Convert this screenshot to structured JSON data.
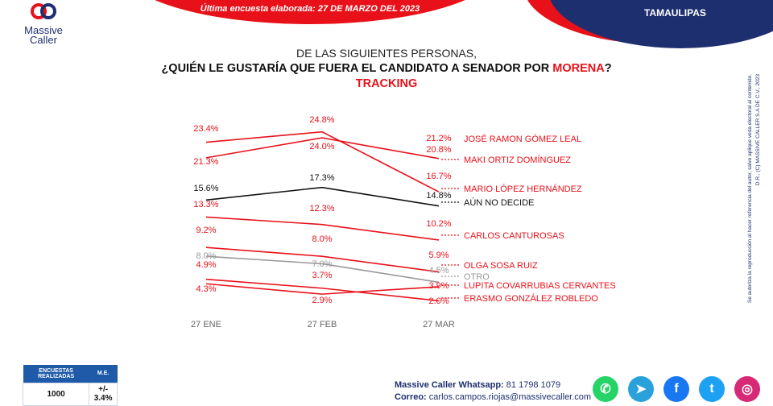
{
  "header": {
    "brand_line1": "Massive",
    "brand_line2": "Caller",
    "latest_survey": "Última encuesta elaborada:  27 DE MARZO DEL 2023",
    "state": "TAMAULIPAS"
  },
  "title": {
    "line1": "DE LAS SIGUIENTES  PERSONAS,",
    "line2_prefix": "¿QUIÉN LE GUSTARÍA QUE FUERA EL CANDIDATO  A SENADOR POR ",
    "line2_party": "MORENA",
    "line2_suffix": "?",
    "line3": "TRACKING"
  },
  "colors": {
    "red": "#e8111a",
    "navy": "#1e2f6f",
    "black": "#111111",
    "gray": "#999999"
  },
  "chart_data": {
    "type": "line",
    "title": "¿QUIÉN LE GUSTARÍA QUE FUERA EL CANDIDATO A SENADOR POR MORENA? TRACKING",
    "categories": [
      "27 ENE",
      "27 FEB",
      "27 MAR"
    ],
    "xlabel": "",
    "ylabel": "",
    "ylim": [
      0,
      26
    ],
    "grid": false,
    "legend": "right",
    "series": [
      {
        "name": "JOSÉ RAMON GÓMEZ LEAL",
        "values": [
          21.3,
          24.0,
          21.2
        ],
        "color": "#e8111a"
      },
      {
        "name": "MAKI ORTIZ DOMÍNGUEZ",
        "values": [
          23.4,
          24.8,
          16.7
        ],
        "color": "#e8111a"
      },
      {
        "name": "MARIO LÓPEZ HERNÁNDEZ",
        "values": [
          null,
          null,
          20.8
        ],
        "color": "#e8111a"
      },
      {
        "name": "AÚN NO DECIDE",
        "values": [
          15.6,
          17.3,
          14.8
        ],
        "color": "#111111"
      },
      {
        "name": "CARLOS CANTUROSAS",
        "values": [
          13.3,
          12.3,
          10.2
        ],
        "color": "#e8111a"
      },
      {
        "name": "OLGA SOSA RUIZ",
        "values": [
          9.2,
          8.0,
          5.9
        ],
        "color": "#e8111a"
      },
      {
        "name": "OTRO",
        "values": [
          8.0,
          7.0,
          4.5
        ],
        "color": "#999999"
      },
      {
        "name": "LUPITA COVARRUBIAS CERVANTES",
        "values": [
          4.3,
          2.9,
          3.9
        ],
        "color": "#e8111a"
      },
      {
        "name": "ERASMO GONZÁLEZ ROBLEDO",
        "values": [
          4.9,
          3.7,
          2.0
        ],
        "color": "#e8111a"
      }
    ],
    "labels": [
      {
        "text": "23.4%",
        "color": "#e8111a",
        "col": 0,
        "ypix": 163
      },
      {
        "text": "21.3%",
        "color": "#e8111a",
        "col": 0,
        "ypix": 204
      },
      {
        "text": "15.6%",
        "color": "#111111",
        "col": 0,
        "ypix": 237
      },
      {
        "text": "13.3%",
        "color": "#e8111a",
        "col": 0,
        "ypix": 257
      },
      {
        "text": "9.2%",
        "color": "#e8111a",
        "col": 0,
        "ypix": 289
      },
      {
        "text": "8.0%",
        "color": "#999999",
        "col": 0,
        "ypix": 321
      },
      {
        "text": "4.9%",
        "color": "#e8111a",
        "col": 0,
        "ypix": 332
      },
      {
        "text": "4.3%",
        "color": "#e8111a",
        "col": 0,
        "ypix": 362
      },
      {
        "text": "24.8%",
        "color": "#e8111a",
        "col": 1,
        "ypix": 152
      },
      {
        "text": "24.0%",
        "color": "#e8111a",
        "col": 1,
        "ypix": 185
      },
      {
        "text": "17.3%",
        "color": "#111111",
        "col": 1,
        "ypix": 224
      },
      {
        "text": "12.3%",
        "color": "#e8111a",
        "col": 1,
        "ypix": 262
      },
      {
        "text": "8.0%",
        "color": "#e8111a",
        "col": 1,
        "ypix": 300
      },
      {
        "text": "7.0%",
        "color": "#999999",
        "col": 1,
        "ypix": 331
      },
      {
        "text": "3.7%",
        "color": "#e8111a",
        "col": 1,
        "ypix": 345
      },
      {
        "text": "2.9%",
        "color": "#e8111a",
        "col": 1,
        "ypix": 376
      },
      {
        "text": "21.2%",
        "color": "#e8111a",
        "col": 2,
        "ypix": 175
      },
      {
        "text": "20.8%",
        "color": "#e8111a",
        "col": 2,
        "ypix": 189
      },
      {
        "text": "16.7%",
        "color": "#e8111a",
        "col": 2,
        "ypix": 222
      },
      {
        "text": "14.8%",
        "color": "#111111",
        "col": 2,
        "ypix": 246
      },
      {
        "text": "10.2%",
        "color": "#e8111a",
        "col": 2,
        "ypix": 281
      },
      {
        "text": "5.9%",
        "color": "#e8111a",
        "col": 2,
        "ypix": 320
      },
      {
        "text": "4.5%",
        "color": "#999999",
        "col": 2,
        "ypix": 339
      },
      {
        "text": "3.9%",
        "color": "#e8111a",
        "col": 2,
        "ypix": 358
      },
      {
        "text": "2.0%",
        "color": "#e8111a",
        "col": 2,
        "ypix": 377
      }
    ]
  },
  "legend_items": [
    {
      "text": "JOSÉ RAMON GÓMEZ LEAL",
      "color": "#e8111a"
    },
    {
      "text": "MAKI ORTIZ DOMÍNGUEZ",
      "color": "#e8111a"
    },
    {
      "text": "MARIO LÓPEZ HERNÁNDEZ",
      "color": "#e8111a"
    },
    {
      "text": "AÚN NO DECIDE",
      "color": "#111111"
    },
    {
      "text": "CARLOS CANTUROSAS",
      "color": "#e8111a"
    },
    {
      "text": "OLGA SOSA RUIZ",
      "color": "#e8111a"
    },
    {
      "text": "OTRO",
      "color": "#999999"
    },
    {
      "text": "LUPITA COVARRUBIAS CERVANTES",
      "color": "#e8111a"
    },
    {
      "text": "ERASMO GONZÁLEZ ROBLEDO",
      "color": "#e8111a"
    }
  ],
  "copyright": {
    "line1": "D.R., (C) MASSIVE CALLER S.A DE C.V., 2023",
    "line2": "Se autoriza la reproducción al hacer referencia del autor, salvo aplique veda electoral al contenido."
  },
  "sample_table": {
    "headers": [
      "ENCUESTAS REALIZADAS",
      "M.E."
    ],
    "values": [
      "1000",
      "+/- 3.4%"
    ]
  },
  "contact": {
    "whatsapp_label": "Massive Caller Whatsapp:",
    "whatsapp_value": "81 1798 1079",
    "email_label": "Correo:",
    "email_value": "carlos.campos.riojas@massivecaller.com"
  },
  "socials": [
    {
      "name": "whatsapp-icon",
      "glyph": "✆",
      "color": "#25d366"
    },
    {
      "name": "telegram-icon",
      "glyph": "➤",
      "color": "#2aa1da"
    },
    {
      "name": "facebook-icon",
      "glyph": "f",
      "color": "#1877f2"
    },
    {
      "name": "twitter-icon",
      "glyph": "t",
      "color": "#1da1f2"
    },
    {
      "name": "instagram-icon",
      "glyph": "◎",
      "color": "#d62976"
    }
  ]
}
